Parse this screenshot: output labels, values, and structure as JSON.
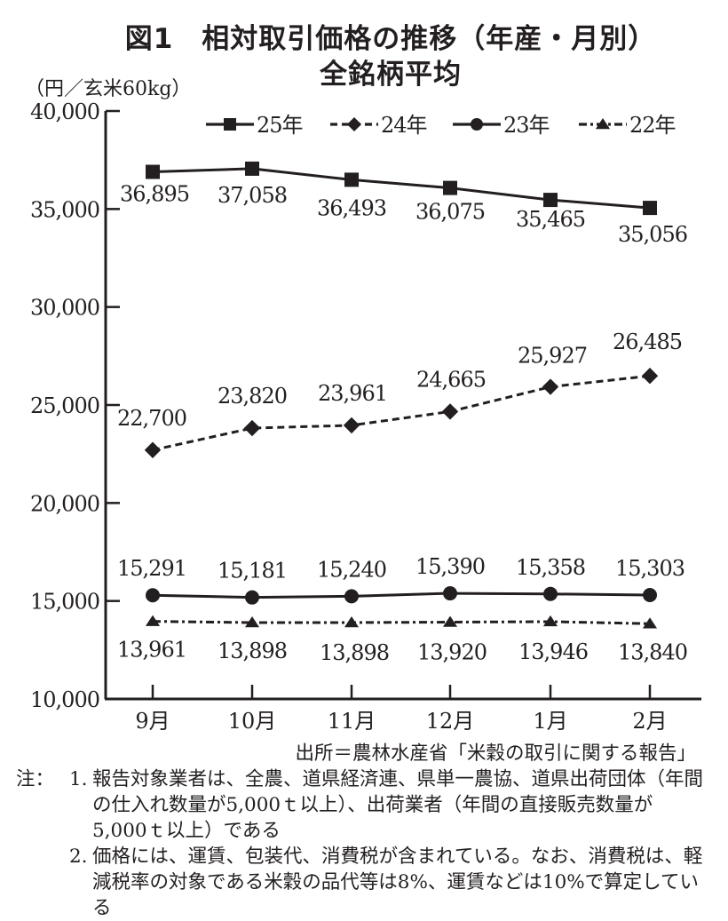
{
  "title": {
    "line1": "図1　相対取引価格の推移（年産・月別）",
    "line2": "全銘柄平均"
  },
  "unit_label": "（円／玄米60kg）",
  "legend": [
    {
      "label": "25年",
      "marker": "square",
      "line": "solid"
    },
    {
      "label": "24年",
      "marker": "diamond",
      "line": "dashed"
    },
    {
      "label": "23年",
      "marker": "circle",
      "line": "solid"
    },
    {
      "label": "22年",
      "marker": "triangle",
      "line": "dash-dot"
    }
  ],
  "source": "出所＝農林水産省「米穀の取引に関する報告」",
  "notes": {
    "head": "注：",
    "items": [
      {
        "num": "1.",
        "text": "報告対象業者は、全農、道県経済連、県単一農協、道県出荷団体（年間の仕入れ数量が5,000ｔ以上）、出荷業者（年間の直接販売数量が5,000ｔ以上）である"
      },
      {
        "num": "2.",
        "text": "価格には、運賃、包装代、消費税が含まれている。なお、消費税は、軽減税率の対象である米穀の品代等は8%、運賃などは10%で算定している"
      }
    ]
  },
  "chart_data": {
    "type": "line",
    "title": "図1　相対取引価格の推移（年産・月別）全銘柄平均",
    "xlabel": "",
    "ylabel": "（円／玄米60kg）",
    "categories": [
      "9月",
      "10月",
      "11月",
      "12月",
      "1月",
      "2月"
    ],
    "ylim": [
      10000,
      40000
    ],
    "yticks": [
      10000,
      15000,
      20000,
      25000,
      30000,
      35000,
      40000
    ],
    "ytick_labels": [
      "10,000",
      "15,000",
      "20,000",
      "25,000",
      "30,000",
      "35,000",
      "40,000"
    ],
    "grid": false,
    "legend_position": "top",
    "series": [
      {
        "name": "25年",
        "values": [
          36895,
          37058,
          36493,
          36075,
          35465,
          35056
        ],
        "labels": [
          "36,895",
          "37,058",
          "36,493",
          "36,075",
          "35,465",
          "35,056"
        ],
        "marker": "square",
        "line": "solid"
      },
      {
        "name": "24年",
        "values": [
          22700,
          23820,
          23961,
          24665,
          25927,
          26485
        ],
        "labels": [
          "22,700",
          "23,820",
          "23,961",
          "24,665",
          "25,927",
          "26,485"
        ],
        "marker": "diamond",
        "line": "dashed"
      },
      {
        "name": "23年",
        "values": [
          15291,
          15181,
          15240,
          15390,
          15358,
          15303
        ],
        "labels": [
          "15,291",
          "15,181",
          "15,240",
          "15,390",
          "15,358",
          "15,303"
        ],
        "marker": "circle",
        "line": "solid"
      },
      {
        "name": "22年",
        "values": [
          13961,
          13898,
          13898,
          13920,
          13946,
          13840
        ],
        "labels": [
          "13,961",
          "13,898",
          "13,898",
          "13,920",
          "13,946",
          "13,840"
        ],
        "marker": "triangle",
        "line": "dash-dot"
      }
    ]
  }
}
